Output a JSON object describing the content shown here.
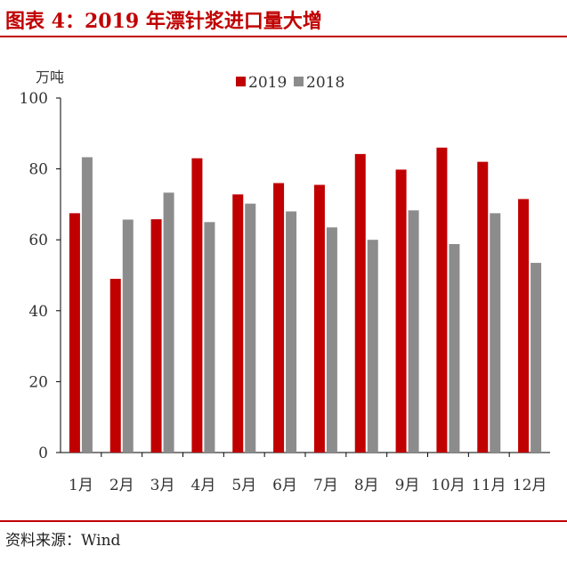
{
  "header": {
    "title": "图表 4：2019 年漂针浆进口量大增"
  },
  "footer": {
    "source": "资料来源：Wind"
  },
  "colors": {
    "accent": "#c00000",
    "series_2019": "#c00000",
    "series_2018": "#8c8c8c"
  },
  "chart_data": {
    "type": "bar",
    "title": "图表 4：2019 年漂针浆进口量大增",
    "ylabel": "万吨",
    "xlabel": "",
    "ylim": [
      0,
      100
    ],
    "yticks": [
      0,
      20,
      40,
      60,
      80,
      100
    ],
    "grid": false,
    "legend": "top-center",
    "categories": [
      "1月",
      "2月",
      "3月",
      "4月",
      "5月",
      "6月",
      "7月",
      "8月",
      "9月",
      "10月",
      "11月",
      "12月"
    ],
    "series": [
      {
        "name": "2019",
        "color": "#c00000",
        "values": [
          67.5,
          49,
          65.8,
          83,
          72.8,
          76,
          75.5,
          84.2,
          79.8,
          86,
          82,
          71.5
        ]
      },
      {
        "name": "2018",
        "color": "#8c8c8c",
        "values": [
          83.3,
          65.7,
          73.3,
          65,
          70.2,
          68,
          63.5,
          60,
          68.3,
          58.8,
          67.5,
          53.5
        ]
      }
    ]
  }
}
